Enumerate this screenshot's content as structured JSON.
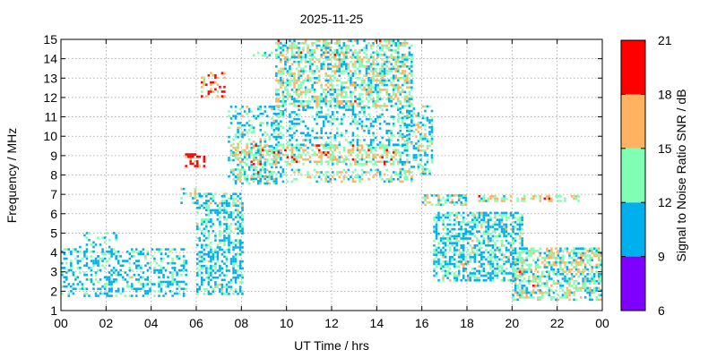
{
  "chart_data": {
    "type": "heatmap",
    "title": "2025-11-25",
    "xlabel": "UT Time / hrs",
    "ylabel": "Frequency / MHz",
    "xlim": [
      0,
      24
    ],
    "ylim": [
      1,
      15
    ],
    "x_tick_labels": [
      "00",
      "02",
      "04",
      "06",
      "08",
      "10",
      "12",
      "14",
      "16",
      "18",
      "20",
      "22",
      "00"
    ],
    "y_ticks": [
      1,
      2,
      3,
      4,
      5,
      6,
      7,
      8,
      9,
      10,
      11,
      12,
      13,
      14,
      15
    ],
    "grid": true,
    "colorbar": {
      "label": "Signal to Noise Ratio SNR / dB",
      "ticks": [
        6,
        9,
        12,
        15,
        18,
        21
      ],
      "bands": [
        {
          "from": 6,
          "to": 9,
          "color": "#7f00ff"
        },
        {
          "from": 9,
          "to": 12,
          "color": "#00b0ec"
        },
        {
          "from": 12,
          "to": 15,
          "color": "#80ffb4"
        },
        {
          "from": 15,
          "to": 18,
          "color": "#ffb360"
        },
        {
          "from": 18,
          "to": 21,
          "color": "#ff0000"
        }
      ]
    },
    "regions": [
      {
        "x": [
          0.0,
          5.5
        ],
        "y": [
          1.7,
          4.2
        ],
        "snr": 10.5,
        "density": 0.33
      },
      {
        "x": [
          0.8,
          2.5
        ],
        "y": [
          3.5,
          5.0
        ],
        "snr": 10.5,
        "density": 0.18
      },
      {
        "x": [
          5.3,
          6.0
        ],
        "y": [
          6.5,
          7.3
        ],
        "snr": 13.0,
        "density": 0.35
      },
      {
        "x": [
          5.5,
          6.3
        ],
        "y": [
          8.4,
          9.0
        ],
        "snr": 19.0,
        "density": 0.5
      },
      {
        "x": [
          6.2,
          7.2
        ],
        "y": [
          12.0,
          13.2
        ],
        "snr": 17.0,
        "density": 0.35
      },
      {
        "x": [
          6.0,
          8.0
        ],
        "y": [
          1.8,
          7.0
        ],
        "snr": 11.0,
        "density": 0.45
      },
      {
        "x": [
          7.4,
          9.8
        ],
        "y": [
          7.5,
          11.5
        ],
        "snr": 11.5,
        "density": 0.28
      },
      {
        "x": [
          7.5,
          15.0
        ],
        "y": [
          8.5,
          9.5
        ],
        "snr": 15.0,
        "density": 0.45
      },
      {
        "x": [
          7.5,
          15.5
        ],
        "y": [
          7.6,
          8.3
        ],
        "snr": 13.5,
        "density": 0.35
      },
      {
        "x": [
          8.5,
          13.5
        ],
        "y": [
          14.0,
          14.3
        ],
        "snr": 12.5,
        "density": 0.25
      },
      {
        "x": [
          9.5,
          15.5
        ],
        "y": [
          11.5,
          15.0
        ],
        "snr": 13.5,
        "density": 0.5
      },
      {
        "x": [
          9.5,
          15.5
        ],
        "y": [
          9.5,
          11.5
        ],
        "snr": 10.5,
        "density": 0.3
      },
      {
        "x": [
          15.0,
          16.5
        ],
        "y": [
          8.0,
          11.5
        ],
        "snr": 12.5,
        "density": 0.35
      },
      {
        "x": [
          16.0,
          18.0
        ],
        "y": [
          6.4,
          7.0
        ],
        "snr": 13.0,
        "density": 0.5
      },
      {
        "x": [
          16.5,
          20.5
        ],
        "y": [
          2.5,
          6.0
        ],
        "snr": 11.5,
        "density": 0.5
      },
      {
        "x": [
          18.5,
          23.0
        ],
        "y": [
          6.6,
          6.9
        ],
        "snr": 15.5,
        "density": 0.35
      },
      {
        "x": [
          20.0,
          24.0
        ],
        "y": [
          1.5,
          4.2
        ],
        "snr": 13.5,
        "density": 0.55
      }
    ]
  }
}
